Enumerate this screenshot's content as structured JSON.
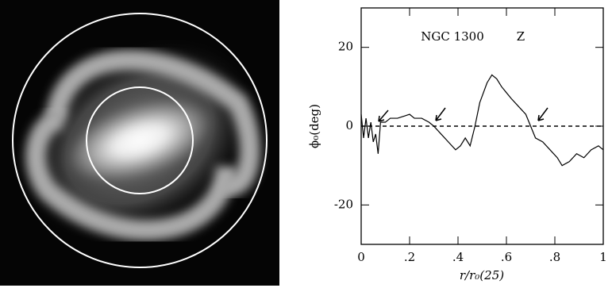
{
  "chart_data": {
    "type": "line",
    "annotations": [
      "NGC 1300",
      "Z"
    ],
    "xlabel": "r/r₀(25)",
    "ylabel": "ϕ₀(deg)",
    "x": [
      0,
      0.01,
      0.02,
      0.03,
      0.04,
      0.05,
      0.06,
      0.07,
      0.08,
      0.1,
      0.12,
      0.15,
      0.2,
      0.22,
      0.25,
      0.28,
      0.3,
      0.33,
      0.36,
      0.39,
      0.41,
      0.43,
      0.45,
      0.47,
      0.49,
      0.52,
      0.54,
      0.56,
      0.58,
      0.62,
      0.65,
      0.68,
      0.7,
      0.72,
      0.75,
      0.78,
      0.81,
      0.83,
      0.86,
      0.89,
      0.92,
      0.95,
      0.98,
      1
    ],
    "series": [
      {
        "color": "#000000",
        "values": [
          3,
          -3,
          2,
          -3,
          1,
          -4,
          -2,
          -7,
          1,
          1,
          2,
          2,
          3,
          2,
          2,
          1,
          0,
          -2,
          -4,
          -6,
          -5,
          -3,
          -5,
          0,
          6,
          11,
          13,
          12,
          10,
          7,
          5,
          3,
          0,
          -3,
          -4,
          -6,
          -8,
          -10,
          -9,
          -7,
          -8,
          -6,
          -5,
          -6
        ]
      }
    ],
    "hline": 0,
    "xlim": [
      0,
      1
    ],
    "ylim": [
      -30,
      30
    ],
    "xticks": [
      0,
      {
        "value": 0.2,
        "label": ".2"
      },
      {
        "value": 0.4,
        "label": ".4"
      },
      {
        "value": 0.6,
        "label": ".6"
      },
      {
        "value": 0.8,
        "label": ".8"
      },
      1
    ],
    "yticks": [
      -20,
      0,
      20
    ]
  }
}
